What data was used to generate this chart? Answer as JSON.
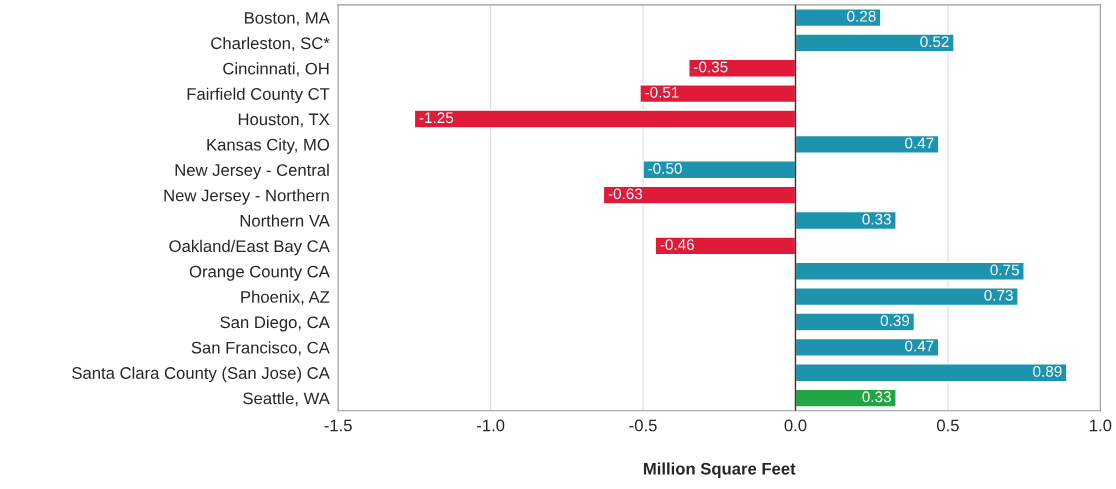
{
  "chart_data": {
    "type": "bar",
    "orientation": "horizontal",
    "xlabel": "Million Square Feet",
    "categories": [
      "Boston, MA",
      "Charleston, SC*",
      "Cincinnati, OH",
      "Fairfield County CT",
      "Houston, TX",
      "Kansas City, MO",
      "New Jersey - Central",
      "New Jersey - Northern",
      "Northern VA",
      "Oakland/East Bay CA",
      "Orange County CA",
      "Phoenix, AZ",
      "San Diego, CA",
      "San Francisco, CA",
      "Santa Clara County (San Jose) CA",
      "Seattle, WA"
    ],
    "values": [
      0.28,
      0.52,
      -0.35,
      -0.51,
      -1.25,
      0.47,
      -0.5,
      -0.63,
      0.33,
      -0.46,
      0.75,
      0.73,
      0.39,
      0.47,
      0.89,
      0.33
    ],
    "value_labels": [
      "0.28",
      "0.52",
      "-0.35",
      "-0.51",
      "-1.25",
      "0.47",
      "-0.50",
      "-0.63",
      "0.33",
      "-0.46",
      "0.75",
      "0.73",
      "0.39",
      "0.47",
      "0.89",
      "0.33"
    ],
    "colors": [
      "#1e93ad",
      "#1e93ad",
      "#e01b3a",
      "#e01b3a",
      "#e01b3a",
      "#1e93ad",
      "#1e93ad",
      "#e01b3a",
      "#1e93ad",
      "#e01b3a",
      "#1e93ad",
      "#1e93ad",
      "#1e93ad",
      "#1e93ad",
      "#1e93ad",
      "#22a545"
    ],
    "xlim": [
      -1.5,
      1.0
    ],
    "xticks": [
      {
        "value": -1.5,
        "label": "-1.5"
      },
      {
        "value": -1.0,
        "label": "-1.0"
      },
      {
        "value": -0.5,
        "label": "-0.5"
      },
      {
        "value": 0.0,
        "label": "0.0"
      },
      {
        "value": 0.5,
        "label": "0.5"
      },
      {
        "value": 1.0,
        "label": "1.0"
      }
    ],
    "grid": "x",
    "legend": false
  }
}
